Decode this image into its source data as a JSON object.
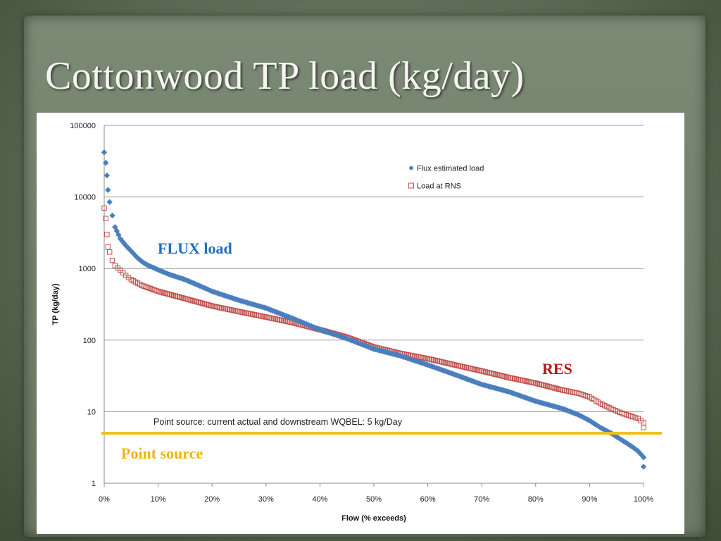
{
  "slide": {
    "title": "Cottonwood TP load (kg/day)"
  },
  "annotations": {
    "flux_label": "FLUX load",
    "res_label": "RES",
    "point_source_label": "Point source",
    "point_source_note": "Point source: current actual and downstream WQBEL: 5 kg/Day"
  },
  "colors": {
    "flux": "#4a7ebf",
    "rns": "#c0504d",
    "point_source_line": "#f0c020",
    "flux_label": "#1f6fbf",
    "res_label": "#b01818",
    "point_source_label": "#f0b400"
  },
  "chart_data": {
    "type": "scatter",
    "xlabel": "Flow (% exceeds)",
    "ylabel": "TP (kg/day)",
    "y_scale": "log",
    "xlim": [
      0,
      100
    ],
    "ylim": [
      1,
      100000
    ],
    "x_ticks": [
      "0%",
      "10%",
      "20%",
      "30%",
      "40%",
      "50%",
      "60%",
      "70%",
      "80%",
      "90%",
      "100%"
    ],
    "y_ticks": [
      "1",
      "10",
      "100",
      "1000",
      "10000",
      "100000"
    ],
    "grid": "horizontal",
    "legend_position": "top-right",
    "reference_line": {
      "y": 5,
      "label": "Point source: current actual and downstream WQBEL: 5 kg/Day"
    },
    "series": [
      {
        "name": "Flux estimated load",
        "marker": "diamond",
        "points": [
          [
            0,
            42000
          ],
          [
            0.3,
            30000
          ],
          [
            0.5,
            20000
          ],
          [
            0.7,
            12500
          ],
          [
            1,
            8500
          ],
          [
            1.5,
            5500
          ],
          [
            2,
            3800
          ],
          [
            3,
            2600
          ],
          [
            4,
            2100
          ],
          [
            5,
            1750
          ],
          [
            6,
            1450
          ],
          [
            7,
            1250
          ],
          [
            8,
            1120
          ],
          [
            10,
            960
          ],
          [
            12,
            830
          ],
          [
            15,
            700
          ],
          [
            18,
            560
          ],
          [
            20,
            480
          ],
          [
            25,
            360
          ],
          [
            30,
            280
          ],
          [
            35,
            200
          ],
          [
            40,
            140
          ],
          [
            45,
            105
          ],
          [
            50,
            75
          ],
          [
            55,
            60
          ],
          [
            60,
            45
          ],
          [
            65,
            33
          ],
          [
            70,
            24
          ],
          [
            75,
            19
          ],
          [
            80,
            14
          ],
          [
            85,
            11
          ],
          [
            88,
            9
          ],
          [
            90,
            7.5
          ],
          [
            92,
            6
          ],
          [
            94,
            5
          ],
          [
            96,
            4
          ],
          [
            98,
            3.2
          ],
          [
            99,
            2.8
          ],
          [
            100,
            2.3
          ],
          [
            100,
            1.7
          ]
        ]
      },
      {
        "name": "Load at RNS",
        "marker": "square-open",
        "points": [
          [
            0,
            7000
          ],
          [
            0.3,
            5000
          ],
          [
            0.5,
            3000
          ],
          [
            0.7,
            2000
          ],
          [
            1,
            1700
          ],
          [
            1.5,
            1300
          ],
          [
            2,
            1100
          ],
          [
            3,
            950
          ],
          [
            4,
            800
          ],
          [
            5,
            700
          ],
          [
            7,
            580
          ],
          [
            10,
            480
          ],
          [
            15,
            380
          ],
          [
            20,
            300
          ],
          [
            25,
            250
          ],
          [
            30,
            210
          ],
          [
            35,
            175
          ],
          [
            40,
            140
          ],
          [
            45,
            110
          ],
          [
            50,
            80
          ],
          [
            55,
            65
          ],
          [
            60,
            55
          ],
          [
            65,
            45
          ],
          [
            70,
            37
          ],
          [
            75,
            30
          ],
          [
            80,
            25
          ],
          [
            85,
            20
          ],
          [
            88,
            18
          ],
          [
            90,
            16
          ],
          [
            92,
            13
          ],
          [
            94,
            11
          ],
          [
            96,
            9.5
          ],
          [
            98,
            8.5
          ],
          [
            99,
            8
          ],
          [
            100,
            7
          ],
          [
            100,
            6
          ]
        ]
      }
    ]
  }
}
